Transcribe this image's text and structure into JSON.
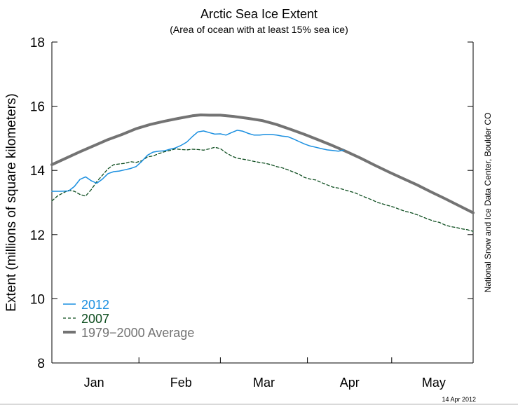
{
  "header": {
    "title": "Arctic Sea Ice Extent",
    "subtitle": "(Area of ocean with at least 15% sea ice)"
  },
  "credit": "National Snow and Ice Data Center, Boulder CO",
  "date_stamp": "14 Apr 2012",
  "chart_data": {
    "type": "line",
    "title": "Arctic Sea Ice Extent",
    "subtitle": "(Area of ocean with at least 15% sea ice)",
    "xlabel": "",
    "ylabel": "Extent (millions of square kilometers)",
    "xlim": [
      0,
      150
    ],
    "ylim": [
      8,
      18
    ],
    "yticks": [
      8,
      10,
      12,
      14,
      16,
      18
    ],
    "month_boundaries": [
      0,
      31,
      60,
      91,
      121,
      150
    ],
    "month_labels": [
      {
        "label": "Jan",
        "center": 15
      },
      {
        "label": "Feb",
        "center": 46
      },
      {
        "label": "Mar",
        "center": 75.5
      },
      {
        "label": "Apr",
        "center": 106
      },
      {
        "label": "May",
        "center": 136
      }
    ],
    "legend_position": "bottom-left",
    "series": [
      {
        "name": "2012",
        "color": "#1a8fe0",
        "style": "solid",
        "width": 1.5,
        "x": [
          0,
          3,
          6,
          8,
          10,
          12,
          14,
          16,
          18,
          20,
          22,
          24,
          26,
          28,
          30,
          32,
          34,
          36,
          38,
          40,
          42,
          44,
          46,
          48,
          50,
          52,
          54,
          56,
          58,
          60,
          62,
          64,
          66,
          68,
          70,
          72,
          74,
          76,
          78,
          80,
          82,
          84,
          86,
          88,
          90,
          92,
          94,
          96,
          98,
          100,
          102,
          104
        ],
        "y": [
          13.35,
          13.35,
          13.36,
          13.5,
          13.72,
          13.8,
          13.68,
          13.6,
          13.73,
          13.9,
          13.96,
          13.98,
          14.02,
          14.06,
          14.12,
          14.28,
          14.47,
          14.57,
          14.6,
          14.61,
          14.66,
          14.7,
          14.78,
          14.88,
          15.05,
          15.2,
          15.23,
          15.18,
          15.13,
          15.14,
          15.1,
          15.18,
          15.25,
          15.22,
          15.15,
          15.1,
          15.1,
          15.12,
          15.12,
          15.1,
          15.07,
          15.05,
          14.98,
          14.9,
          14.82,
          14.76,
          14.72,
          14.68,
          14.64,
          14.62,
          14.6,
          14.63
        ]
      },
      {
        "name": "2007",
        "color": "#0d4d1f",
        "style": "dashed",
        "width": 1.3,
        "x": [
          0,
          2,
          4,
          6,
          8,
          10,
          12,
          14,
          16,
          18,
          20,
          22,
          24,
          26,
          28,
          30,
          32,
          34,
          36,
          38,
          40,
          42,
          44,
          46,
          48,
          50,
          52,
          54,
          56,
          58,
          60,
          62,
          64,
          66,
          68,
          70,
          72,
          74,
          76,
          78,
          80,
          82,
          84,
          86,
          88,
          90,
          92,
          94,
          96,
          98,
          100,
          102,
          104,
          106,
          108,
          110,
          112,
          114,
          116,
          118,
          120,
          122,
          124,
          126,
          128,
          130,
          132,
          134,
          136,
          138,
          140,
          142,
          144,
          146,
          148,
          150
        ],
        "y": [
          13.05,
          13.2,
          13.3,
          13.38,
          13.35,
          13.25,
          13.2,
          13.4,
          13.65,
          13.85,
          14.05,
          14.18,
          14.2,
          14.22,
          14.27,
          14.25,
          14.3,
          14.42,
          14.45,
          14.52,
          14.58,
          14.62,
          14.67,
          14.65,
          14.64,
          14.66,
          14.65,
          14.63,
          14.67,
          14.72,
          14.68,
          14.55,
          14.45,
          14.38,
          14.35,
          14.32,
          14.28,
          14.25,
          14.22,
          14.18,
          14.12,
          14.08,
          14.02,
          13.95,
          13.88,
          13.78,
          13.73,
          13.7,
          13.62,
          13.55,
          13.48,
          13.45,
          13.4,
          13.35,
          13.3,
          13.22,
          13.15,
          13.08,
          13.0,
          12.95,
          12.9,
          12.85,
          12.78,
          12.72,
          12.68,
          12.62,
          12.55,
          12.48,
          12.42,
          12.38,
          12.3,
          12.25,
          12.22,
          12.18,
          12.15,
          12.1
        ]
      },
      {
        "name": "1979−2000 Average",
        "color": "#737373",
        "style": "solid",
        "width": 4,
        "x": [
          0,
          5,
          10,
          15,
          20,
          25,
          30,
          35,
          40,
          45,
          50,
          53,
          56,
          60,
          65,
          70,
          75,
          80,
          85,
          90,
          95,
          100,
          105,
          110,
          115,
          120,
          125,
          130,
          135,
          140,
          145,
          150
        ],
        "y": [
          14.18,
          14.38,
          14.58,
          14.77,
          14.96,
          15.12,
          15.3,
          15.43,
          15.53,
          15.62,
          15.7,
          15.73,
          15.72,
          15.72,
          15.68,
          15.62,
          15.55,
          15.43,
          15.28,
          15.12,
          14.95,
          14.77,
          14.58,
          14.38,
          14.16,
          13.95,
          13.75,
          13.55,
          13.33,
          13.12,
          12.9,
          12.68
        ]
      }
    ]
  }
}
